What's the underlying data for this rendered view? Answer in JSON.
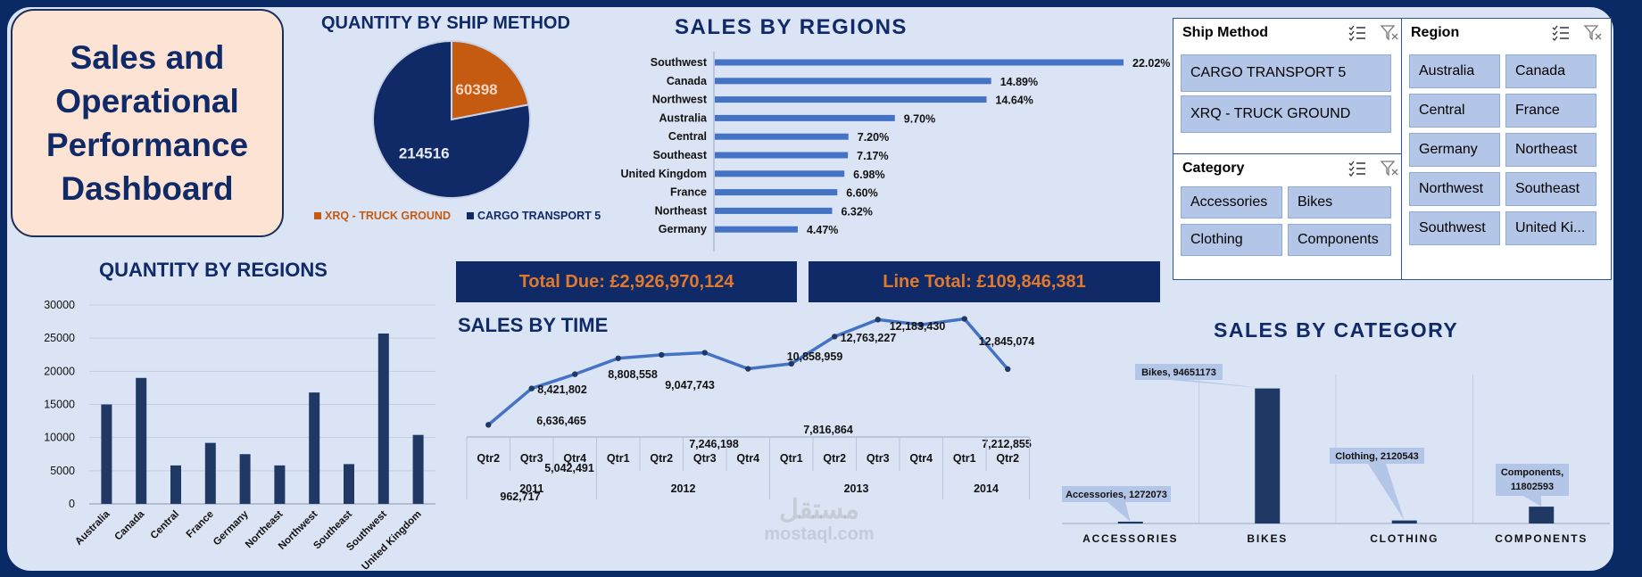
{
  "title": "Sales and\nOperational\nPerformance\nDashboard",
  "ship_title": "QUANTITY BY SHIP METHOD",
  "regions_sales_title": "SALES BY REGIONS",
  "qty_regions_title": "QUANTITY BY REGIONS",
  "time_title": "SALES BY TIME",
  "category_title": "SALES BY CATEGORY",
  "kpis": {
    "total_due": "Total Due: £2,926,970,124",
    "line_total": "Line Total: £109,846,381"
  },
  "colors": {
    "navy": "#0f2a66",
    "orange": "#c55a11",
    "bar_blue": "#4472c4",
    "dark_bar": "#1f3864",
    "line_blue": "#4472c4"
  },
  "slicers": {
    "ship_method": {
      "header": "Ship Method",
      "items": [
        "CARGO TRANSPORT 5",
        "XRQ - TRUCK GROUND"
      ]
    },
    "category": {
      "header": "Category",
      "items": [
        "Accessories",
        "Bikes",
        "Clothing",
        "Components"
      ]
    },
    "region": {
      "header": "Region",
      "items": [
        "Australia",
        "Canada",
        "Central",
        "France",
        "Germany",
        "Northeast",
        "Northwest",
        "Southeast",
        "Southwest",
        "United Ki..."
      ]
    }
  },
  "watermark": {
    "arabic": "مستقل",
    "latin": "mostaql.com"
  },
  "chart_data": [
    {
      "id": "ship",
      "type": "pie",
      "slices": [
        {
          "label": "XRQ - TRUCK GROUND",
          "value": 60398,
          "color": "#c55a11"
        },
        {
          "label": "CARGO TRANSPORT 5",
          "value": 214516,
          "color": "#0f2a66"
        }
      ],
      "legend": [
        "XRQ - TRUCK GROUND",
        "CARGO TRANSPORT 5"
      ],
      "legend_position": "bottom"
    },
    {
      "id": "regions",
      "type": "bar",
      "orientation": "horizontal",
      "categories": [
        "Southwest",
        "Canada",
        "Northwest",
        "Australia",
        "Central",
        "Southeast",
        "United Kingdom",
        "France",
        "Northeast",
        "Germany"
      ],
      "values": [
        22.02,
        14.89,
        14.64,
        9.7,
        7.2,
        7.17,
        6.98,
        6.6,
        6.32,
        4.47
      ],
      "labels": [
        "22.02%",
        "14.89%",
        "14.64%",
        "9.70%",
        "7.20%",
        "7.17%",
        "6.98%",
        "6.60%",
        "6.32%",
        "4.47%"
      ]
    },
    {
      "id": "qty",
      "type": "bar",
      "categories": [
        "Australia",
        "Canada",
        "Central",
        "France",
        "Germany",
        "Northeast",
        "Northwest",
        "Southeast",
        "Southwest",
        "United Kingdom"
      ],
      "values": [
        15000,
        19000,
        5800,
        9200,
        7500,
        5800,
        16800,
        6000,
        25700,
        10400
      ],
      "yticks": [
        "0",
        "5000",
        "10000",
        "15000",
        "20000",
        "25000",
        "30000"
      ],
      "ylim": [
        0,
        30000
      ],
      "grid": true
    },
    {
      "id": "time",
      "type": "line",
      "x": [
        "Qtr2",
        "Qtr3",
        "Qtr4",
        "Qtr1",
        "Qtr2",
        "Qtr3",
        "Qtr4",
        "Qtr1",
        "Qtr2",
        "Qtr3",
        "Qtr4",
        "Qtr1",
        "Qtr2"
      ],
      "years": [
        {
          "label": "2011",
          "span": 3
        },
        {
          "label": "2012",
          "span": 4
        },
        {
          "label": "2013",
          "span": 4
        },
        {
          "label": "2014",
          "span": 2
        }
      ],
      "values": [
        962717,
        5042491,
        6636465,
        8421802,
        8808558,
        9047743,
        7246198,
        7816864,
        10858959,
        12763227,
        12183430,
        12845074,
        7212855
      ],
      "labels": [
        "962,717",
        "5,042,491",
        "6,636,465",
        "8,421,802",
        "8,808,558",
        "9,047,743",
        "7,246,198",
        "7,816,864",
        "10,858,959",
        "12,763,227",
        "12,183,430",
        "12,845,074",
        "7,212,855"
      ],
      "ylim": [
        0,
        14000000
      ]
    },
    {
      "id": "category",
      "type": "bar",
      "categories": [
        "ACCESSORIES",
        "BIKES",
        "CLOTHING",
        "COMPONENTS"
      ],
      "values": [
        1272073,
        94651173,
        2120543,
        11802593
      ],
      "labels": [
        "Accessories, 1272073",
        "Bikes, 94651173",
        "Clothing, 2120543",
        "Components,\n11802593"
      ],
      "ylim": [
        0,
        100000000
      ]
    }
  ]
}
